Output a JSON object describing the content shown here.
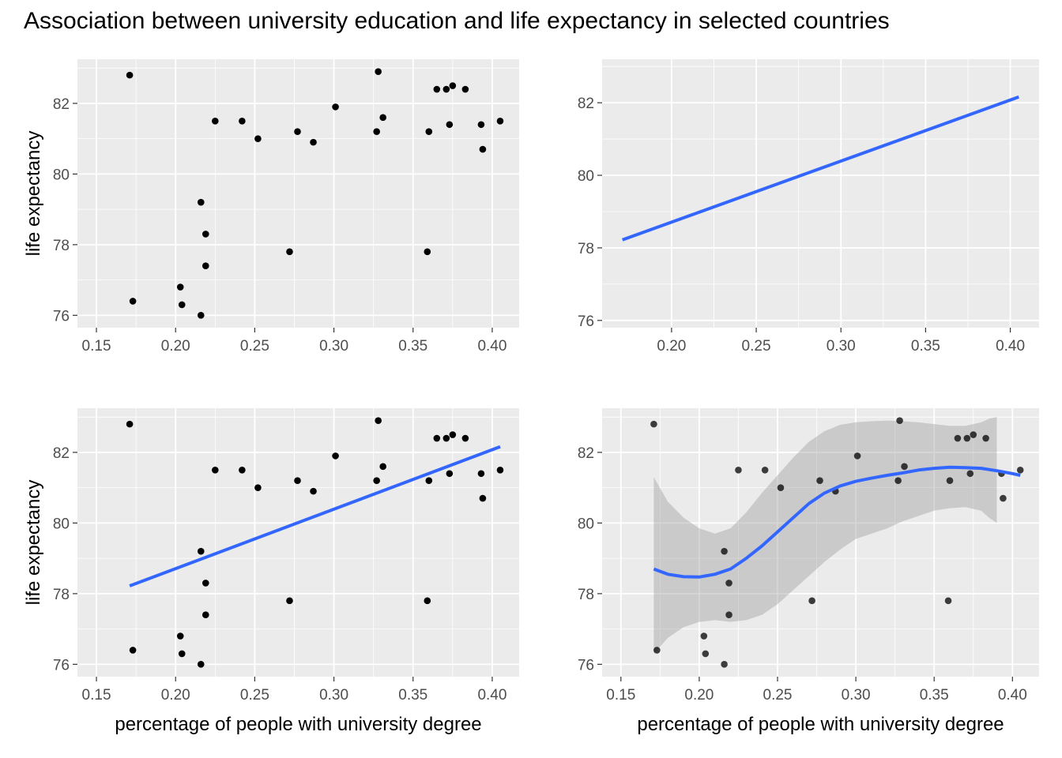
{
  "title": "Association between university education and life expectancy in selected countries",
  "colors": {
    "panel_bg": "#ebebeb",
    "grid": "#ffffff",
    "point": "#000000",
    "line": "#3366ff",
    "ribbon": "#999999",
    "tick_text": "#4d4d4d"
  },
  "chart_data": [
    {
      "type": "scatter",
      "panel": "top-left",
      "points": [
        {
          "x": 0.171,
          "y": 82.8
        },
        {
          "x": 0.173,
          "y": 76.4
        },
        {
          "x": 0.203,
          "y": 76.8
        },
        {
          "x": 0.204,
          "y": 76.3
        },
        {
          "x": 0.216,
          "y": 79.2
        },
        {
          "x": 0.216,
          "y": 76.0
        },
        {
          "x": 0.219,
          "y": 78.3
        },
        {
          "x": 0.219,
          "y": 77.4
        },
        {
          "x": 0.225,
          "y": 81.5
        },
        {
          "x": 0.242,
          "y": 81.5
        },
        {
          "x": 0.252,
          "y": 81.0
        },
        {
          "x": 0.272,
          "y": 77.8
        },
        {
          "x": 0.277,
          "y": 81.2
        },
        {
          "x": 0.287,
          "y": 80.9
        },
        {
          "x": 0.301,
          "y": 81.9
        },
        {
          "x": 0.327,
          "y": 81.2
        },
        {
          "x": 0.328,
          "y": 82.9
        },
        {
          "x": 0.331,
          "y": 81.6
        },
        {
          "x": 0.359,
          "y": 77.8
        },
        {
          "x": 0.36,
          "y": 81.2
        },
        {
          "x": 0.365,
          "y": 82.4
        },
        {
          "x": 0.371,
          "y": 82.4
        },
        {
          "x": 0.373,
          "y": 81.4
        },
        {
          "x": 0.375,
          "y": 82.5
        },
        {
          "x": 0.383,
          "y": 82.4
        },
        {
          "x": 0.393,
          "y": 81.4
        },
        {
          "x": 0.394,
          "y": 80.7
        },
        {
          "x": 0.405,
          "y": 81.5
        }
      ],
      "xlim": [
        0.138,
        0.417
      ],
      "ylim": [
        75.65,
        83.25
      ],
      "xticks": [
        0.15,
        0.2,
        0.25,
        0.3,
        0.35,
        0.4
      ],
      "xtick_labels": [
        "0.15",
        "0.20",
        "0.25",
        "0.30",
        "0.35",
        "0.40"
      ],
      "yticks": [
        76,
        78,
        80,
        82
      ],
      "ytick_labels": [
        "76",
        "78",
        "80",
        "82"
      ],
      "xlabel": "",
      "ylabel": "life expectancy"
    },
    {
      "type": "line",
      "panel": "top-right",
      "line": [
        {
          "x": 0.171,
          "y": 78.22
        },
        {
          "x": 0.405,
          "y": 82.16
        }
      ],
      "xlim": [
        0.159,
        0.417
      ],
      "ylim": [
        75.8,
        83.2
      ],
      "xticks": [
        0.2,
        0.25,
        0.3,
        0.35,
        0.4
      ],
      "xtick_labels": [
        "0.20",
        "0.25",
        "0.30",
        "0.35",
        "0.40"
      ],
      "yticks": [
        76,
        78,
        80,
        82
      ],
      "ytick_labels": [
        "76",
        "78",
        "80",
        "82"
      ],
      "xlabel": "",
      "ylabel": ""
    },
    {
      "type": "scatter",
      "panel": "bottom-left",
      "points": [
        {
          "x": 0.171,
          "y": 82.8
        },
        {
          "x": 0.173,
          "y": 76.4
        },
        {
          "x": 0.203,
          "y": 76.8
        },
        {
          "x": 0.204,
          "y": 76.3
        },
        {
          "x": 0.216,
          "y": 79.2
        },
        {
          "x": 0.216,
          "y": 76.0
        },
        {
          "x": 0.219,
          "y": 78.3
        },
        {
          "x": 0.219,
          "y": 77.4
        },
        {
          "x": 0.225,
          "y": 81.5
        },
        {
          "x": 0.242,
          "y": 81.5
        },
        {
          "x": 0.252,
          "y": 81.0
        },
        {
          "x": 0.272,
          "y": 77.8
        },
        {
          "x": 0.277,
          "y": 81.2
        },
        {
          "x": 0.287,
          "y": 80.9
        },
        {
          "x": 0.301,
          "y": 81.9
        },
        {
          "x": 0.327,
          "y": 81.2
        },
        {
          "x": 0.328,
          "y": 82.9
        },
        {
          "x": 0.331,
          "y": 81.6
        },
        {
          "x": 0.359,
          "y": 77.8
        },
        {
          "x": 0.36,
          "y": 81.2
        },
        {
          "x": 0.365,
          "y": 82.4
        },
        {
          "x": 0.371,
          "y": 82.4
        },
        {
          "x": 0.373,
          "y": 81.4
        },
        {
          "x": 0.375,
          "y": 82.5
        },
        {
          "x": 0.383,
          "y": 82.4
        },
        {
          "x": 0.393,
          "y": 81.4
        },
        {
          "x": 0.394,
          "y": 80.7
        },
        {
          "x": 0.405,
          "y": 81.5
        }
      ],
      "line": [
        {
          "x": 0.171,
          "y": 78.22
        },
        {
          "x": 0.405,
          "y": 82.16
        }
      ],
      "xlim": [
        0.138,
        0.417
      ],
      "ylim": [
        75.65,
        83.25
      ],
      "xticks": [
        0.15,
        0.2,
        0.25,
        0.3,
        0.35,
        0.4
      ],
      "xtick_labels": [
        "0.15",
        "0.20",
        "0.25",
        "0.30",
        "0.35",
        "0.40"
      ],
      "yticks": [
        76,
        78,
        80,
        82
      ],
      "ytick_labels": [
        "76",
        "78",
        "80",
        "82"
      ],
      "xlabel": "percentage of people with university degree",
      "ylabel": "life expectancy"
    },
    {
      "type": "scatter",
      "panel": "bottom-right",
      "points": [
        {
          "x": 0.171,
          "y": 82.8
        },
        {
          "x": 0.173,
          "y": 76.4
        },
        {
          "x": 0.203,
          "y": 76.8
        },
        {
          "x": 0.204,
          "y": 76.3
        },
        {
          "x": 0.216,
          "y": 79.2
        },
        {
          "x": 0.216,
          "y": 76.0
        },
        {
          "x": 0.219,
          "y": 78.3
        },
        {
          "x": 0.219,
          "y": 77.4
        },
        {
          "x": 0.225,
          "y": 81.5
        },
        {
          "x": 0.242,
          "y": 81.5
        },
        {
          "x": 0.252,
          "y": 81.0
        },
        {
          "x": 0.272,
          "y": 77.8
        },
        {
          "x": 0.277,
          "y": 81.2
        },
        {
          "x": 0.287,
          "y": 80.9
        },
        {
          "x": 0.301,
          "y": 81.9
        },
        {
          "x": 0.327,
          "y": 81.2
        },
        {
          "x": 0.328,
          "y": 82.9
        },
        {
          "x": 0.331,
          "y": 81.6
        },
        {
          "x": 0.359,
          "y": 77.8
        },
        {
          "x": 0.36,
          "y": 81.2
        },
        {
          "x": 0.365,
          "y": 82.4
        },
        {
          "x": 0.371,
          "y": 82.4
        },
        {
          "x": 0.373,
          "y": 81.4
        },
        {
          "x": 0.375,
          "y": 82.5
        },
        {
          "x": 0.383,
          "y": 82.4
        },
        {
          "x": 0.393,
          "y": 81.4
        },
        {
          "x": 0.394,
          "y": 80.7
        },
        {
          "x": 0.405,
          "y": 81.5
        }
      ],
      "smooth": [
        {
          "x": 0.171,
          "y": 78.7
        },
        {
          "x": 0.18,
          "y": 78.55
        },
        {
          "x": 0.19,
          "y": 78.48
        },
        {
          "x": 0.2,
          "y": 78.47
        },
        {
          "x": 0.21,
          "y": 78.55
        },
        {
          "x": 0.22,
          "y": 78.7
        },
        {
          "x": 0.23,
          "y": 79.0
        },
        {
          "x": 0.24,
          "y": 79.35
        },
        {
          "x": 0.25,
          "y": 79.75
        },
        {
          "x": 0.26,
          "y": 80.15
        },
        {
          "x": 0.27,
          "y": 80.55
        },
        {
          "x": 0.28,
          "y": 80.85
        },
        {
          "x": 0.29,
          "y": 81.05
        },
        {
          "x": 0.3,
          "y": 81.18
        },
        {
          "x": 0.31,
          "y": 81.27
        },
        {
          "x": 0.32,
          "y": 81.35
        },
        {
          "x": 0.33,
          "y": 81.42
        },
        {
          "x": 0.34,
          "y": 81.5
        },
        {
          "x": 0.35,
          "y": 81.55
        },
        {
          "x": 0.36,
          "y": 81.58
        },
        {
          "x": 0.37,
          "y": 81.57
        },
        {
          "x": 0.38,
          "y": 81.55
        },
        {
          "x": 0.39,
          "y": 81.48
        },
        {
          "x": 0.4,
          "y": 81.4
        },
        {
          "x": 0.405,
          "y": 81.35
        }
      ],
      "ribbon_upper": [
        {
          "x": 0.171,
          "y": 81.3
        },
        {
          "x": 0.18,
          "y": 80.6
        },
        {
          "x": 0.19,
          "y": 80.15
        },
        {
          "x": 0.2,
          "y": 79.85
        },
        {
          "x": 0.21,
          "y": 79.7
        },
        {
          "x": 0.22,
          "y": 79.85
        },
        {
          "x": 0.23,
          "y": 80.3
        },
        {
          "x": 0.24,
          "y": 80.85
        },
        {
          "x": 0.25,
          "y": 81.35
        },
        {
          "x": 0.26,
          "y": 81.85
        },
        {
          "x": 0.27,
          "y": 82.3
        },
        {
          "x": 0.28,
          "y": 82.6
        },
        {
          "x": 0.29,
          "y": 82.78
        },
        {
          "x": 0.3,
          "y": 82.85
        },
        {
          "x": 0.31,
          "y": 82.88
        },
        {
          "x": 0.32,
          "y": 82.9
        },
        {
          "x": 0.33,
          "y": 82.88
        },
        {
          "x": 0.34,
          "y": 82.85
        },
        {
          "x": 0.35,
          "y": 82.8
        },
        {
          "x": 0.36,
          "y": 82.75
        },
        {
          "x": 0.37,
          "y": 82.75
        },
        {
          "x": 0.38,
          "y": 82.85
        },
        {
          "x": 0.385,
          "y": 82.95
        },
        {
          "x": 0.39,
          "y": 83.0
        }
      ],
      "ribbon_lower": [
        {
          "x": 0.39,
          "y": 80.0
        },
        {
          "x": 0.385,
          "y": 80.15
        },
        {
          "x": 0.38,
          "y": 80.35
        },
        {
          "x": 0.37,
          "y": 80.45
        },
        {
          "x": 0.36,
          "y": 80.42
        },
        {
          "x": 0.35,
          "y": 80.35
        },
        {
          "x": 0.34,
          "y": 80.2
        },
        {
          "x": 0.33,
          "y": 80.05
        },
        {
          "x": 0.32,
          "y": 79.85
        },
        {
          "x": 0.31,
          "y": 79.7
        },
        {
          "x": 0.3,
          "y": 79.55
        },
        {
          "x": 0.29,
          "y": 79.25
        },
        {
          "x": 0.28,
          "y": 78.9
        },
        {
          "x": 0.27,
          "y": 78.5
        },
        {
          "x": 0.26,
          "y": 78.1
        },
        {
          "x": 0.25,
          "y": 77.7
        },
        {
          "x": 0.24,
          "y": 77.4
        },
        {
          "x": 0.23,
          "y": 77.25
        },
        {
          "x": 0.22,
          "y": 77.2
        },
        {
          "x": 0.21,
          "y": 77.25
        },
        {
          "x": 0.2,
          "y": 77.2
        },
        {
          "x": 0.19,
          "y": 77.05
        },
        {
          "x": 0.18,
          "y": 76.75
        },
        {
          "x": 0.171,
          "y": 76.3
        }
      ],
      "xlim": [
        0.138,
        0.417
      ],
      "ylim": [
        75.65,
        83.25
      ],
      "xticks": [
        0.15,
        0.2,
        0.25,
        0.3,
        0.35,
        0.4
      ],
      "xtick_labels": [
        "0.15",
        "0.20",
        "0.25",
        "0.30",
        "0.35",
        "0.40"
      ],
      "yticks": [
        76,
        78,
        80,
        82
      ],
      "ytick_labels": [
        "76",
        "78",
        "80",
        "82"
      ],
      "xlabel": "percentage of people with university degree",
      "ylabel": ""
    }
  ]
}
